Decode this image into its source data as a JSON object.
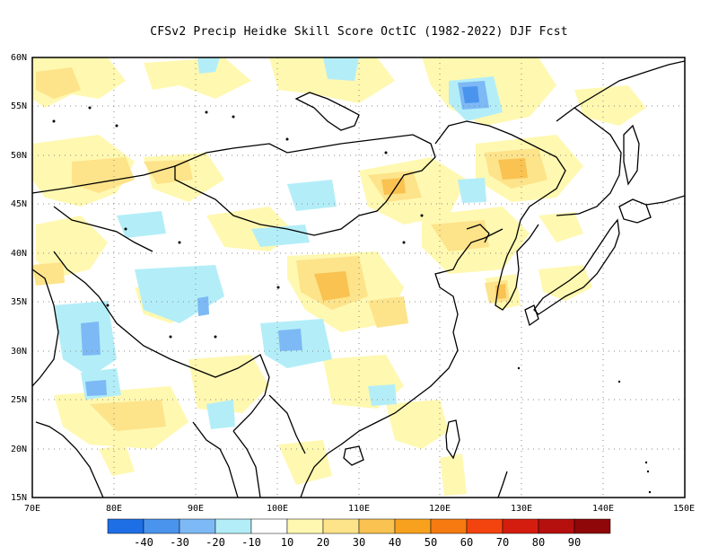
{
  "title": "CFSv2 Precip Heidke Skill Score OctIC (1982-2022) DJF Fcst",
  "map": {
    "lon_range": [
      70,
      150
    ],
    "lat_range": [
      15,
      60
    ],
    "lon_ticks": [
      "70E",
      "80E",
      "90E",
      "100E",
      "110E",
      "120E",
      "130E",
      "140E",
      "150E"
    ],
    "lat_ticks": [
      "15N",
      "20N",
      "25N",
      "30N",
      "35N",
      "40N",
      "45N",
      "50N",
      "55N",
      "60N"
    ],
    "grid": "dotted"
  },
  "colorbar": {
    "labels": [
      "-40",
      "-30",
      "-20",
      "-10",
      "10",
      "20",
      "30",
      "40",
      "50",
      "60",
      "70",
      "80",
      "90"
    ],
    "colors": [
      "#1e6fe6",
      "#4a94ee",
      "#7db9f5",
      "#b3eef8",
      "#ffffff",
      "#fff8b0",
      "#fde38a",
      "#f9c251",
      "#f7a11f",
      "#f57a10",
      "#f34410",
      "#d41d0e",
      "#b50f0e",
      "#8f0709"
    ]
  },
  "colors": {
    "coast": "#000000",
    "grid": "#888888"
  }
}
